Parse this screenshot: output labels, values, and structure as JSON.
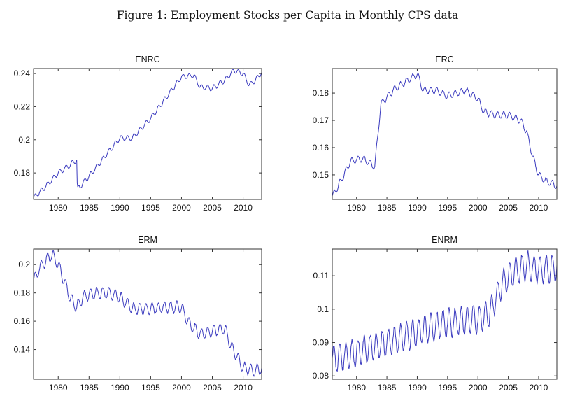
{
  "figure": {
    "title": "Figure 1: Employment Stocks per Capita in Monthly CPS data"
  },
  "style": {
    "line_color": "#3b3bbf",
    "axis_color": "#333333"
  },
  "chart_data": [
    {
      "type": "line",
      "title": "ENRC",
      "xlim": [
        1976,
        2013
      ],
      "ylim": [
        0.164,
        0.243
      ],
      "xticks": [
        1980,
        1985,
        1990,
        1995,
        2000,
        2005,
        2010
      ],
      "yticks": [
        0.18,
        0.2,
        0.22,
        0.24
      ],
      "ytick_labels": [
        "0.18",
        "0.2",
        "0.22",
        "0.24"
      ],
      "grid": false,
      "seasonal_amplitude": 0.0015,
      "series": [
        {
          "x": [
            1976,
            1978,
            1980,
            1982,
            1983.0,
            1983.1,
            1985,
            1988,
            1990,
            1992,
            1995,
            1998,
            2000,
            2002,
            2003,
            2005,
            2007,
            2008.5,
            2010,
            2011,
            2012,
            2013
          ],
          "y": [
            0.165,
            0.172,
            0.18,
            0.185,
            0.188,
            0.17,
            0.178,
            0.192,
            0.201,
            0.201,
            0.213,
            0.228,
            0.238,
            0.239,
            0.232,
            0.231,
            0.236,
            0.242,
            0.24,
            0.233,
            0.236,
            0.241
          ]
        }
      ]
    },
    {
      "type": "line",
      "title": "ERC",
      "xlim": [
        1976,
        2013
      ],
      "ylim": [
        0.141,
        0.189
      ],
      "xticks": [
        1980,
        1985,
        1990,
        1995,
        2000,
        2005,
        2010
      ],
      "yticks": [
        0.15,
        0.16,
        0.17,
        0.18
      ],
      "ytick_labels": [
        "0.15",
        "0.16",
        "0.17",
        "0.18"
      ],
      "grid": false,
      "seasonal_amplitude": 0.0012,
      "series": [
        {
          "x": [
            1976,
            1977,
            1979,
            1981,
            1983,
            1984,
            1986,
            1988,
            1990,
            1991,
            1993,
            1995,
            1998,
            2000,
            2001,
            2003,
            2005,
            2007,
            2008,
            2009,
            2010,
            2011,
            2012,
            2013
          ],
          "y": [
            0.142,
            0.146,
            0.155,
            0.156,
            0.153,
            0.176,
            0.181,
            0.184,
            0.187,
            0.181,
            0.181,
            0.179,
            0.181,
            0.178,
            0.173,
            0.172,
            0.172,
            0.17,
            0.166,
            0.157,
            0.15,
            0.148,
            0.147,
            0.146
          ]
        }
      ]
    },
    {
      "type": "line",
      "title": "ERM",
      "xlim": [
        1976,
        2013
      ],
      "ylim": [
        0.119,
        0.211
      ],
      "xticks": [
        1980,
        1985,
        1990,
        1995,
        2000,
        2005,
        2010
      ],
      "yticks": [
        0.14,
        0.16,
        0.18,
        0.2
      ],
      "ytick_labels": [
        "0.14",
        "0.16",
        "0.18",
        "0.2"
      ],
      "grid": false,
      "seasonal_amplitude": 0.004,
      "series": [
        {
          "x": [
            1976,
            1977,
            1978,
            1979,
            1980,
            1981,
            1982,
            1983,
            1984,
            1986,
            1988,
            1990,
            1992,
            1995,
            1998,
            2000,
            2001,
            2002,
            2003,
            2005,
            2007,
            2008,
            2009,
            2010,
            2011,
            2012,
            2013
          ],
          "y": [
            0.188,
            0.198,
            0.203,
            0.207,
            0.2,
            0.188,
            0.176,
            0.17,
            0.177,
            0.18,
            0.18,
            0.177,
            0.169,
            0.169,
            0.17,
            0.17,
            0.16,
            0.155,
            0.151,
            0.153,
            0.155,
            0.143,
            0.135,
            0.127,
            0.126,
            0.125,
            0.127
          ]
        }
      ]
    },
    {
      "type": "line",
      "title": "ENRM",
      "xlim": [
        1976,
        2013
      ],
      "ylim": [
        0.079,
        0.118
      ],
      "xticks": [
        1980,
        1985,
        1990,
        1995,
        2000,
        2005,
        2010
      ],
      "yticks": [
        0.08,
        0.09,
        0.1,
        0.11
      ],
      "ytick_labels": [
        "0.08",
        "0.09",
        "0.1",
        "0.11"
      ],
      "grid": false,
      "seasonal_amplitude": 0.004,
      "series": [
        {
          "x": [
            1976,
            1980,
            1985,
            1990,
            1995,
            2000,
            2002,
            2004,
            2006,
            2008,
            2010,
            2012,
            2013
          ],
          "y": [
            0.085,
            0.087,
            0.09,
            0.093,
            0.096,
            0.097,
            0.099,
            0.108,
            0.111,
            0.113,
            0.112,
            0.112,
            0.113
          ]
        }
      ]
    }
  ]
}
